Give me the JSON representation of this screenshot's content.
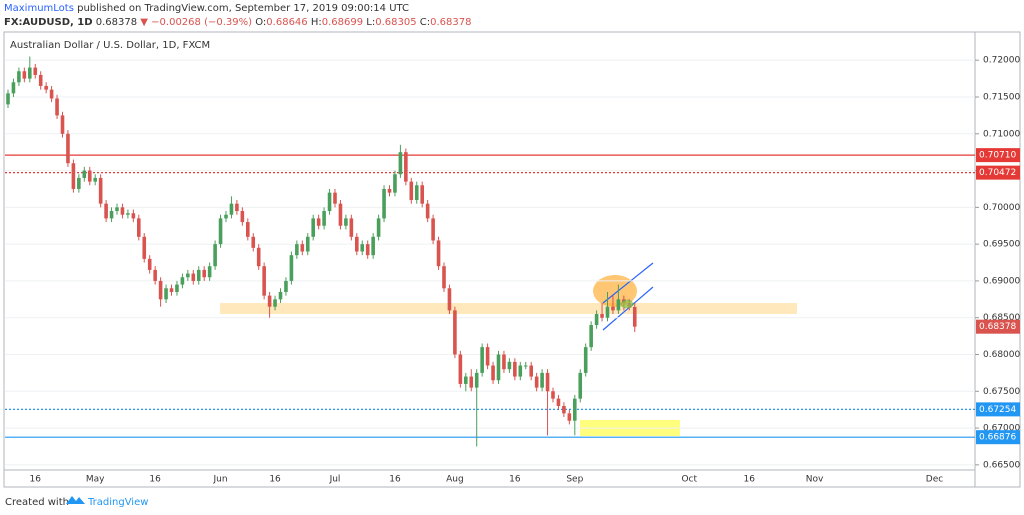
{
  "header": {
    "author": "MaximumLots",
    "published": "published on TradingView.com, September 17, 2019 09:00:14 UTC",
    "symbol": "FX:AUDUSD, 1D",
    "change": "▼ −0.00268 (−0.39%)",
    "o": "O:",
    "h": "H:",
    "l": "L:",
    "c": "C:"
  },
  "footer": {
    "created": "Created with",
    "brand": "TradingView"
  },
  "chart_data": {
    "type": "candlestick",
    "title": "Australian Dollar / U.S. Dollar, 1D, FXCM",
    "up_color": "#4a9f5c",
    "down_color": "#d9534f",
    "grid": true,
    "ylim": [
      0.6643,
      0.7237
    ],
    "yticks": [
      {
        "value": 0.665,
        "label": "0.66500"
      },
      {
        "value": 0.67,
        "label": "0.67000"
      },
      {
        "value": 0.675,
        "label": "0.67500"
      },
      {
        "value": 0.68,
        "label": "0.68000"
      },
      {
        "value": 0.685,
        "label": "0.68500"
      },
      {
        "value": 0.69,
        "label": "0.69000"
      },
      {
        "value": 0.695,
        "label": "0.69500"
      },
      {
        "value": 0.7,
        "label": "0.70000"
      },
      {
        "value": 0.705,
        "label": "0.70500"
      },
      {
        "value": 0.71,
        "label": "0.71000"
      },
      {
        "value": 0.715,
        "label": "0.71500"
      },
      {
        "value": 0.72,
        "label": "0.72000"
      }
    ],
    "levels": [
      {
        "value": 0.7071,
        "label": "0.70710",
        "color": "#e53935",
        "style": "solid"
      },
      {
        "value": 0.70472,
        "label": "0.70472",
        "color": "#e53935",
        "style": "dotted"
      },
      {
        "value": 0.67254,
        "label": "0.67254",
        "color": "#2196f3",
        "style": "dotted"
      },
      {
        "value": 0.66876,
        "label": "0.66876",
        "color": "#2196f3",
        "style": "solid"
      }
    ],
    "categories": [
      null,
      null,
      null,
      null,
      null,
      "16",
      null,
      null,
      null,
      null,
      null,
      null,
      null,
      null,
      null,
      null,
      "May",
      null,
      null,
      null,
      null,
      null,
      null,
      null,
      null,
      null,
      null,
      "16",
      null,
      null,
      null,
      null,
      null,
      null,
      null,
      null,
      null,
      null,
      null,
      "Jun",
      null,
      null,
      null,
      null,
      null,
      null,
      null,
      null,
      null,
      "16",
      null,
      null,
      null,
      null,
      null,
      null,
      null,
      null,
      null,
      null,
      "Jul",
      null,
      null,
      null,
      null,
      null,
      null,
      null,
      null,
      null,
      null,
      "16",
      null,
      null,
      null,
      null,
      null,
      null,
      null,
      null,
      null,
      null,
      "Aug",
      null,
      null,
      null,
      null,
      null,
      null,
      null,
      null,
      null,
      null,
      "16",
      null,
      null,
      null,
      null,
      null,
      null,
      null,
      null,
      null,
      null,
      "Sep",
      null,
      null,
      null,
      null,
      null,
      null,
      null,
      null,
      null,
      null,
      null,
      null,
      null,
      null,
      null,
      null,
      null,
      null,
      null,
      null,
      "Oct",
      null,
      null,
      null,
      null,
      null,
      null,
      null,
      null,
      null,
      null,
      "16",
      null,
      null,
      null,
      null,
      null,
      null,
      null,
      null,
      null,
      null,
      null,
      "Nov",
      null,
      null,
      null,
      null,
      null,
      null,
      null,
      null,
      null,
      null,
      null,
      null,
      null,
      null,
      null,
      null,
      null,
      null,
      null,
      null,
      null,
      "Dec",
      null,
      null,
      null,
      null,
      null,
      null,
      null
    ],
    "open": [
      0.714,
      0.7155,
      0.717,
      0.7185,
      0.7175,
      0.719,
      0.718,
      0.7165,
      0.716,
      0.7148,
      0.7125,
      0.71,
      0.706,
      0.7025,
      0.704,
      0.705,
      0.7035,
      0.704,
      0.7005,
      0.6985,
      0.6995,
      0.7,
      0.699,
      0.6992,
      0.6985,
      0.696,
      0.693,
      0.6915,
      0.69,
      0.6875,
      0.689,
      0.6885,
      0.6895,
      0.6905,
      0.691,
      0.69,
      0.6915,
      0.6905,
      0.692,
      0.695,
      0.6985,
      0.699,
      0.7005,
      0.6995,
      0.698,
      0.696,
      0.6945,
      0.692,
      0.688,
      0.6865,
      0.6875,
      0.6885,
      0.69,
      0.6935,
      0.695,
      0.694,
      0.696,
      0.6985,
      0.6975,
      0.6995,
      0.702,
      0.7005,
      0.6975,
      0.6985,
      0.696,
      0.694,
      0.695,
      0.6935,
      0.696,
      0.6985,
      0.7025,
      0.702,
      0.7045,
      0.7075,
      0.7035,
      0.701,
      0.703,
      0.7005,
      0.6985,
      0.6955,
      0.692,
      0.689,
      0.686,
      0.68,
      0.676,
      0.677,
      0.6755,
      0.6775,
      0.681,
      0.6785,
      0.6765,
      0.68,
      0.678,
      0.679,
      0.677,
      0.6785,
      0.6785,
      0.677,
      0.6755,
      0.6775,
      0.675,
      0.674,
      0.673,
      0.672,
      0.671,
      0.674,
      0.6775,
      0.681,
      0.684,
      0.6855,
      0.685,
      0.6865,
      0.686,
      0.6875,
      0.687,
      0.68646,
      null,
      null,
      null,
      null,
      null,
      null,
      null,
      null,
      null,
      null,
      null,
      null,
      null,
      null,
      null,
      null,
      null,
      null,
      null,
      null,
      null,
      null,
      null,
      null,
      null,
      null,
      null,
      null,
      null,
      null,
      null,
      null,
      null,
      null,
      null,
      null,
      null,
      null,
      null,
      null,
      null,
      null,
      null,
      null,
      null,
      null,
      null,
      null,
      null,
      null,
      null,
      null,
      null,
      null,
      null,
      null,
      null,
      null,
      null,
      null,
      null,
      null
    ],
    "high": [
      0.716,
      0.7175,
      0.719,
      0.719,
      0.7205,
      0.7195,
      0.7185,
      0.717,
      0.7165,
      0.7153,
      0.713,
      0.7105,
      0.7065,
      0.7045,
      0.7055,
      0.7055,
      0.7045,
      0.7045,
      0.701,
      0.7,
      0.7005,
      0.7005,
      0.6997,
      0.6997,
      0.699,
      0.6965,
      0.6935,
      0.692,
      0.6905,
      0.6895,
      0.6895,
      0.69,
      0.691,
      0.6915,
      0.6915,
      0.692,
      0.692,
      0.6925,
      0.6955,
      0.699,
      0.6995,
      0.7015,
      0.701,
      0.7,
      0.6985,
      0.6965,
      0.695,
      0.6925,
      0.6885,
      0.688,
      0.689,
      0.6905,
      0.694,
      0.6955,
      0.6955,
      0.6965,
      0.699,
      0.699,
      0.7,
      0.7025,
      0.7025,
      0.701,
      0.699,
      0.699,
      0.6965,
      0.6955,
      0.6955,
      0.6965,
      0.699,
      0.703,
      0.703,
      0.705,
      0.7085,
      0.708,
      0.704,
      0.7035,
      0.7035,
      0.701,
      0.699,
      0.696,
      0.6925,
      0.6895,
      0.6865,
      0.6805,
      0.6775,
      0.678,
      0.678,
      0.6815,
      0.6815,
      0.679,
      0.6805,
      0.6805,
      0.6795,
      0.6795,
      0.679,
      0.679,
      0.679,
      0.6775,
      0.678,
      0.678,
      0.6755,
      0.6745,
      0.6735,
      0.6725,
      0.6745,
      0.678,
      0.6815,
      0.6845,
      0.686,
      0.687,
      0.6885,
      0.688,
      0.6895,
      0.688,
      0.6875,
      0.68699,
      null,
      null,
      null,
      null,
      null,
      null,
      null,
      null,
      null,
      null,
      null,
      null,
      null,
      null,
      null,
      null,
      null,
      null,
      null,
      null,
      null,
      null,
      null,
      null,
      null,
      null,
      null,
      null,
      null,
      null,
      null,
      null,
      null,
      null,
      null,
      null,
      null,
      null,
      null,
      null,
      null,
      null,
      null,
      null,
      null,
      null,
      null,
      null,
      null,
      null,
      null,
      null,
      null,
      null,
      null,
      null,
      null,
      null,
      null,
      null,
      null,
      null
    ],
    "low": [
      0.7135,
      0.715,
      0.7165,
      0.717,
      0.717,
      0.7175,
      0.716,
      0.7155,
      0.7143,
      0.712,
      0.7095,
      0.7055,
      0.702,
      0.702,
      0.7035,
      0.703,
      0.703,
      0.7,
      0.698,
      0.698,
      0.699,
      0.6985,
      0.6985,
      0.698,
      0.6955,
      0.6925,
      0.691,
      0.6895,
      0.6865,
      0.687,
      0.688,
      0.688,
      0.689,
      0.69,
      0.6895,
      0.6895,
      0.69,
      0.69,
      0.6915,
      0.6945,
      0.698,
      0.6985,
      0.699,
      0.6975,
      0.6955,
      0.694,
      0.6915,
      0.6875,
      0.685,
      0.686,
      0.687,
      0.688,
      0.6895,
      0.693,
      0.6935,
      0.6935,
      0.6955,
      0.697,
      0.697,
      0.699,
      0.7,
      0.697,
      0.697,
      0.6955,
      0.6935,
      0.6935,
      0.693,
      0.693,
      0.6955,
      0.698,
      0.7015,
      0.7015,
      0.704,
      0.703,
      0.7005,
      0.7005,
      0.7,
      0.698,
      0.695,
      0.6915,
      0.6885,
      0.6855,
      0.6795,
      0.6755,
      0.675,
      0.675,
      0.6675,
      0.677,
      0.678,
      0.676,
      0.676,
      0.6775,
      0.6775,
      0.6765,
      0.6765,
      0.678,
      0.6765,
      0.675,
      0.675,
      0.669,
      0.6735,
      0.6725,
      0.6715,
      0.6705,
      0.669,
      0.6735,
      0.677,
      0.6805,
      0.6835,
      0.6845,
      0.6845,
      0.6855,
      0.6855,
      0.686,
      0.686,
      0.68305,
      null,
      null,
      null,
      null,
      null,
      null,
      null,
      null,
      null,
      null,
      null,
      null,
      null,
      null,
      null,
      null,
      null,
      null,
      null,
      null,
      null,
      null,
      null,
      null,
      null,
      null,
      null,
      null,
      null,
      null,
      null,
      null,
      null,
      null,
      null,
      null,
      null,
      null,
      null,
      null,
      null,
      null,
      null,
      null,
      null,
      null,
      null,
      null,
      null,
      null,
      null,
      null,
      null,
      null,
      null,
      null,
      null,
      null,
      null,
      null,
      null,
      null
    ],
    "close": [
      0.7155,
      0.717,
      0.7185,
      0.7175,
      0.719,
      0.718,
      0.7165,
      0.716,
      0.7148,
      0.7125,
      0.71,
      0.706,
      0.7025,
      0.704,
      0.705,
      0.7035,
      0.704,
      0.7005,
      0.6985,
      0.6995,
      0.7,
      0.699,
      0.6992,
      0.6985,
      0.696,
      0.693,
      0.6915,
      0.69,
      0.6875,
      0.689,
      0.6885,
      0.6895,
      0.6905,
      0.691,
      0.69,
      0.6915,
      0.6905,
      0.692,
      0.695,
      0.6985,
      0.699,
      0.7005,
      0.6995,
      0.698,
      0.696,
      0.6945,
      0.692,
      0.688,
      0.6865,
      0.6875,
      0.6885,
      0.69,
      0.6935,
      0.695,
      0.694,
      0.696,
      0.6985,
      0.6975,
      0.6995,
      0.702,
      0.7005,
      0.6975,
      0.6985,
      0.696,
      0.694,
      0.695,
      0.6935,
      0.696,
      0.6985,
      0.7025,
      0.702,
      0.7045,
      0.7075,
      0.7035,
      0.701,
      0.703,
      0.7005,
      0.6985,
      0.6955,
      0.692,
      0.689,
      0.686,
      0.68,
      0.676,
      0.677,
      0.6755,
      0.6775,
      0.681,
      0.6785,
      0.6765,
      0.68,
      0.678,
      0.679,
      0.677,
      0.6785,
      0.6785,
      0.677,
      0.6755,
      0.6775,
      0.675,
      0.674,
      0.673,
      0.672,
      0.671,
      0.674,
      0.6775,
      0.681,
      0.684,
      0.6855,
      0.685,
      0.6865,
      0.686,
      0.6875,
      0.687,
      0.6865,
      0.68378,
      null,
      null,
      null,
      null,
      null,
      null,
      null,
      null,
      null,
      null,
      null,
      null,
      null,
      null,
      null,
      null,
      null,
      null,
      null,
      null,
      null,
      null,
      null,
      null,
      null,
      null,
      null,
      null,
      null,
      null,
      null,
      null,
      null,
      null,
      null,
      null,
      null,
      null,
      null,
      null,
      null,
      null,
      null,
      null,
      null,
      null,
      null,
      null,
      null,
      null,
      null,
      null,
      null,
      null,
      null,
      null,
      null,
      null,
      null,
      null,
      null,
      null
    ]
  }
}
